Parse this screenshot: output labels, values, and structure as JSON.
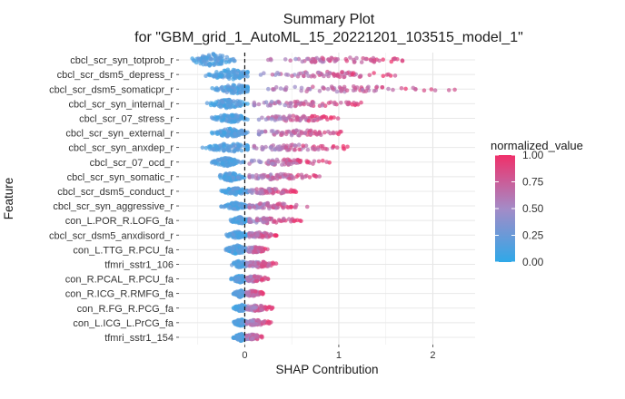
{
  "chart_data": {
    "type": "scatter",
    "subtype": "shap-summary-beeswarm",
    "title_line1": "Summary Plot",
    "title_line2": "for \"GBM_grid_1_AutoML_15_20221201_103515_model_1\"",
    "xlabel": "SHAP Contribution",
    "ylabel": "Feature",
    "xlim": [
      -0.7,
      2.45
    ],
    "x_ticks": [
      0,
      1,
      2
    ],
    "x_tick_labels": [
      "0",
      "1",
      "2"
    ],
    "zero_line": "dashed",
    "grid": true,
    "legend": {
      "title": "normalized_value",
      "position": "right",
      "ticks": [
        0.0,
        0.25,
        0.5,
        0.75,
        1.0
      ],
      "tick_labels": [
        "0.00",
        "0.25",
        "0.50",
        "0.75",
        "1.00"
      ],
      "colors": {
        "low": "#2fa8e8",
        "mid": "#a48bc7",
        "high": "#f0306a"
      }
    },
    "features": [
      {
        "name": "cbcl_scr_syn_totprob_r",
        "neg_min": -0.62,
        "neg_peak": -0.35,
        "neg_spread": 7,
        "pos_min": 0.25,
        "pos_max": 1.7,
        "pos_center": 1.0
      },
      {
        "name": "cbcl_scr_dsm5_depress_r",
        "neg_min": -0.45,
        "neg_peak": -0.15,
        "neg_spread": 6,
        "pos_min": 0.15,
        "pos_max": 1.6,
        "pos_center": 0.95
      },
      {
        "name": "cbcl_scr_dsm5_somaticpr_r",
        "neg_min": -0.35,
        "neg_peak": -0.1,
        "neg_spread": 5,
        "pos_min": 0.25,
        "pos_max": 2.35,
        "pos_center": 1.05
      },
      {
        "name": "cbcl_scr_syn_internal_r",
        "neg_min": -0.4,
        "neg_peak": -0.18,
        "neg_spread": 5,
        "pos_min": 0.1,
        "pos_max": 1.45,
        "pos_center": 0.6
      },
      {
        "name": "cbcl_scr_07_stress_r",
        "neg_min": -0.35,
        "neg_peak": -0.15,
        "neg_spread": 5,
        "pos_min": 0.15,
        "pos_max": 1.05,
        "pos_center": 0.55
      },
      {
        "name": "cbcl_scr_syn_external_r",
        "neg_min": -0.35,
        "neg_peak": -0.15,
        "neg_spread": 5,
        "pos_min": 0.15,
        "pos_max": 1.1,
        "pos_center": 0.55
      },
      {
        "name": "cbcl_scr_syn_anxdep_r",
        "neg_min": -0.45,
        "neg_peak": -0.15,
        "neg_spread": 5,
        "pos_min": 0.1,
        "pos_max": 1.15,
        "pos_center": 0.55
      },
      {
        "name": "cbcl_scr_07_ocd_r",
        "neg_min": -0.35,
        "neg_peak": -0.2,
        "neg_spread": 5,
        "pos_min": 0.05,
        "pos_max": 0.9,
        "pos_center": 0.4
      },
      {
        "name": "cbcl_scr_syn_somatic_r",
        "neg_min": -0.3,
        "neg_peak": -0.15,
        "neg_spread": 5,
        "pos_min": 0.05,
        "pos_max": 0.85,
        "pos_center": 0.35
      },
      {
        "name": "cbcl_scr_dsm5_conduct_r",
        "neg_min": -0.25,
        "neg_peak": -0.1,
        "neg_spread": 4,
        "pos_min": 0.05,
        "pos_max": 0.55,
        "pos_center": 0.25
      },
      {
        "name": "cbcl_scr_syn_aggressive_r",
        "neg_min": -0.25,
        "neg_peak": -0.1,
        "neg_spread": 4,
        "pos_min": 0.05,
        "pos_max": 0.7,
        "pos_center": 0.25
      },
      {
        "name": "con_L.POR_R.LOFG_fa",
        "neg_min": -0.15,
        "neg_peak": -0.05,
        "neg_spread": 4,
        "pos_min": 0.05,
        "pos_max": 0.6,
        "pos_center": 0.25
      },
      {
        "name": "cbcl_scr_dsm5_anxdisord_r",
        "neg_min": -0.2,
        "neg_peak": -0.08,
        "neg_spread": 4,
        "pos_min": 0.05,
        "pos_max": 0.35,
        "pos_center": 0.15
      },
      {
        "name": "con_L.TTG_R.PCU_fa",
        "neg_min": -0.2,
        "neg_peak": -0.08,
        "neg_spread": 5,
        "pos_min": 0.02,
        "pos_max": 0.25,
        "pos_center": 0.1
      },
      {
        "name": "tfmri_sstr1_106",
        "neg_min": -0.15,
        "neg_peak": -0.05,
        "neg_spread": 4,
        "pos_min": 0.02,
        "pos_max": 0.35,
        "pos_center": 0.15
      },
      {
        "name": "con_R.PCAL_R.PCU_fa",
        "neg_min": -0.15,
        "neg_peak": -0.05,
        "neg_spread": 4,
        "pos_min": 0.02,
        "pos_max": 0.25,
        "pos_center": 0.1
      },
      {
        "name": "con_R.ICG_R.RMFG_fa",
        "neg_min": -0.12,
        "neg_peak": -0.05,
        "neg_spread": 4,
        "pos_min": 0.02,
        "pos_max": 0.2,
        "pos_center": 0.08
      },
      {
        "name": "con_R.FG_R.PCG_fa",
        "neg_min": -0.12,
        "neg_peak": -0.04,
        "neg_spread": 4,
        "pos_min": 0.02,
        "pos_max": 0.3,
        "pos_center": 0.12
      },
      {
        "name": "con_L.ICG_L.PrCG_fa",
        "neg_min": -0.12,
        "neg_peak": -0.04,
        "neg_spread": 4,
        "pos_min": 0.02,
        "pos_max": 0.28,
        "pos_center": 0.1
      },
      {
        "name": "tfmri_sstr1_154",
        "neg_min": -0.12,
        "neg_peak": -0.04,
        "neg_spread": 4,
        "pos_min": 0.02,
        "pos_max": 0.2,
        "pos_center": 0.08
      }
    ]
  }
}
